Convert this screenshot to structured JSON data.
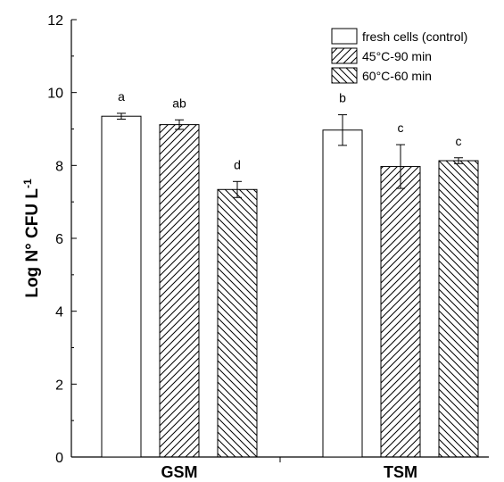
{
  "chart_data": {
    "type": "bar",
    "categories": [
      "GSM",
      "TSM"
    ],
    "ylabel": "Log N° CFU L",
    "ylabel_exponent": "-1",
    "ylim": [
      0,
      12
    ],
    "yticks": [
      "0",
      "2",
      "4",
      "6",
      "8",
      "10",
      "12"
    ],
    "legend_position": "top-right",
    "series": [
      {
        "name": "fresh cells (control)",
        "pattern": "none",
        "values": [
          9.35,
          8.97
        ],
        "errors": [
          0.08,
          0.42
        ],
        "letters": [
          "a",
          "b"
        ]
      },
      {
        "name": "45°C-90 min",
        "pattern": "diagonal-up",
        "values": [
          9.12,
          7.97
        ],
        "errors": [
          0.13,
          0.6
        ],
        "letters": [
          "ab",
          "c"
        ]
      },
      {
        "name": "60°C-60 min",
        "pattern": "diagonal-down",
        "values": [
          7.34,
          8.13
        ],
        "errors": [
          0.22,
          0.08
        ],
        "letters": [
          "d",
          "c"
        ]
      }
    ],
    "colors": {
      "bar_fill": "#ffffff",
      "stroke": "#000000"
    }
  }
}
